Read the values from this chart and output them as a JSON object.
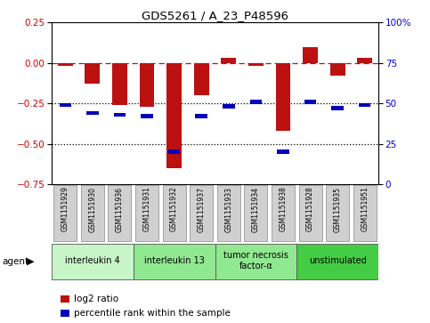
{
  "title": "GDS5261 / A_23_P48596",
  "samples": [
    "GSM1151929",
    "GSM1151930",
    "GSM1151936",
    "GSM1151931",
    "GSM1151932",
    "GSM1151937",
    "GSM1151933",
    "GSM1151934",
    "GSM1151938",
    "GSM1151928",
    "GSM1151935",
    "GSM1151951"
  ],
  "log2_ratio": [
    -0.02,
    -0.13,
    -0.26,
    -0.27,
    -0.65,
    -0.2,
    0.03,
    -0.02,
    -0.42,
    0.1,
    -0.08,
    0.03
  ],
  "percentile": [
    49,
    44,
    43,
    42,
    20,
    42,
    48,
    51,
    20,
    51,
    47,
    49
  ],
  "ylim_left": [
    -0.75,
    0.25
  ],
  "ylim_right": [
    0,
    100
  ],
  "hline_dashed": 0.0,
  "hline_dotted1": -0.25,
  "hline_dotted2": -0.5,
  "yticks_left": [
    0.25,
    0.0,
    -0.25,
    -0.5,
    -0.75
  ],
  "yticks_right": [
    100,
    75,
    50,
    25,
    0
  ],
  "agents": [
    {
      "label": "interleukin 4",
      "start": 0,
      "end": 3,
      "color": "#c8f5c8"
    },
    {
      "label": "interleukin 13",
      "start": 3,
      "end": 6,
      "color": "#90e890"
    },
    {
      "label": "tumor necrosis\nfactor-α",
      "start": 6,
      "end": 9,
      "color": "#90e890"
    },
    {
      "label": "unstimulated",
      "start": 9,
      "end": 12,
      "color": "#44cc44"
    }
  ],
  "bar_color": "#bb1111",
  "dot_color": "#0000bb",
  "bar_width": 0.55,
  "legend_labels": [
    "log2 ratio",
    "percentile rank within the sample"
  ],
  "legend_colors": [
    "#bb1111",
    "#0000bb"
  ],
  "agent_label": "agent",
  "background_color": "#ffffff",
  "plot_bg_color": "#ffffff",
  "tick_label_color_left": "#cc0000",
  "tick_label_color_right": "#0000cc",
  "sample_box_color": "#d0d0d0",
  "sample_box_edge": "#888888"
}
